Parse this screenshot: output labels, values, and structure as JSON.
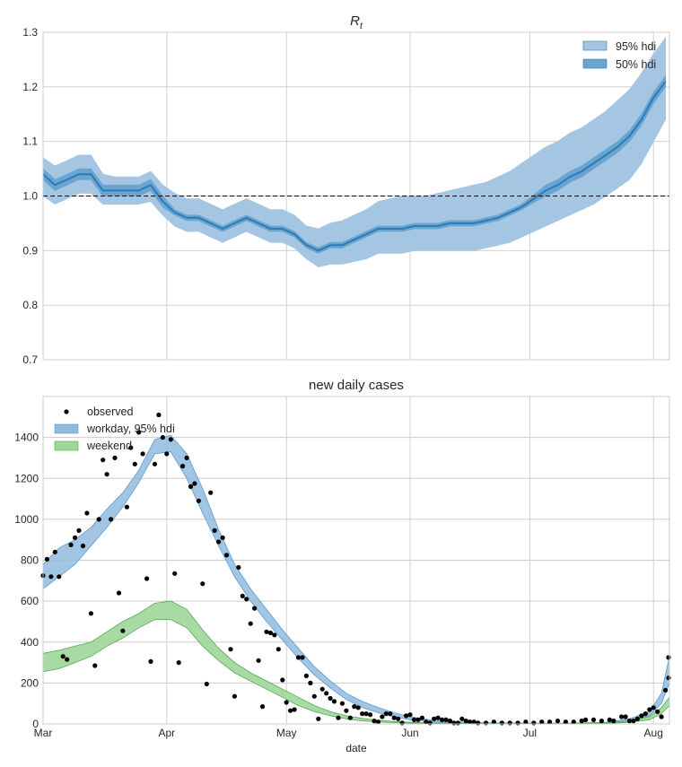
{
  "chart_data": [
    {
      "type": "area",
      "title": "R",
      "title_subscript": "t",
      "xlabel": "",
      "ylabel": "",
      "ylim": [
        0.7,
        1.3
      ],
      "yticks": [
        "0.7",
        "0.8",
        "0.9",
        "1.0",
        "1.1",
        "1.2",
        "1.3"
      ],
      "xlim": [
        "2020-03-01",
        "2020-08-05"
      ],
      "grid": true,
      "reference_line": {
        "y": 1.0,
        "style": "dashed",
        "color": "#000000"
      },
      "legend": {
        "position": "top-right",
        "entries": [
          "95% hdi",
          "50% hdi"
        ]
      },
      "colors": {
        "hdi95": "#a4c6e2",
        "hdi50": "#6aa4d1",
        "median": "#2c7bb6"
      },
      "dates": [
        "2020-03-01",
        "2020-03-04",
        "2020-03-07",
        "2020-03-10",
        "2020-03-13",
        "2020-03-16",
        "2020-03-19",
        "2020-03-22",
        "2020-03-25",
        "2020-03-28",
        "2020-03-31",
        "2020-04-03",
        "2020-04-06",
        "2020-04-09",
        "2020-04-12",
        "2020-04-15",
        "2020-04-18",
        "2020-04-21",
        "2020-04-24",
        "2020-04-27",
        "2020-04-30",
        "2020-05-03",
        "2020-05-06",
        "2020-05-09",
        "2020-05-12",
        "2020-05-15",
        "2020-05-18",
        "2020-05-21",
        "2020-05-24",
        "2020-05-27",
        "2020-05-30",
        "2020-06-02",
        "2020-06-05",
        "2020-06-08",
        "2020-06-11",
        "2020-06-14",
        "2020-06-17",
        "2020-06-20",
        "2020-06-23",
        "2020-06-26",
        "2020-06-29",
        "2020-07-02",
        "2020-07-05",
        "2020-07-08",
        "2020-07-11",
        "2020-07-14",
        "2020-07-17",
        "2020-07-20",
        "2020-07-23",
        "2020-07-26",
        "2020-07-29",
        "2020-08-01",
        "2020-08-04"
      ],
      "median": [
        1.04,
        1.02,
        1.03,
        1.04,
        1.04,
        1.01,
        1.01,
        1.01,
        1.01,
        1.02,
        0.99,
        0.97,
        0.96,
        0.96,
        0.95,
        0.94,
        0.95,
        0.96,
        0.95,
        0.94,
        0.94,
        0.93,
        0.91,
        0.9,
        0.91,
        0.91,
        0.92,
        0.93,
        0.94,
        0.94,
        0.94,
        0.945,
        0.945,
        0.945,
        0.95,
        0.95,
        0.95,
        0.955,
        0.96,
        0.97,
        0.98,
        0.995,
        1.01,
        1.02,
        1.035,
        1.045,
        1.06,
        1.075,
        1.09,
        1.11,
        1.14,
        1.18,
        1.21
      ],
      "hdi50_low": [
        1.03,
        1.01,
        1.02,
        1.03,
        1.03,
        1.0,
        1.0,
        1.0,
        1.0,
        1.01,
        0.98,
        0.965,
        0.955,
        0.955,
        0.945,
        0.935,
        0.945,
        0.955,
        0.945,
        0.935,
        0.935,
        0.925,
        0.905,
        0.895,
        0.905,
        0.905,
        0.915,
        0.925,
        0.935,
        0.935,
        0.935,
        0.94,
        0.94,
        0.94,
        0.945,
        0.945,
        0.945,
        0.95,
        0.955,
        0.965,
        0.975,
        0.988,
        1.0,
        1.01,
        1.025,
        1.035,
        1.05,
        1.065,
        1.08,
        1.1,
        1.13,
        1.17,
        1.2
      ],
      "hdi50_high": [
        1.05,
        1.03,
        1.04,
        1.05,
        1.05,
        1.02,
        1.02,
        1.02,
        1.02,
        1.03,
        1.0,
        0.975,
        0.965,
        0.965,
        0.955,
        0.945,
        0.955,
        0.965,
        0.955,
        0.945,
        0.945,
        0.935,
        0.915,
        0.905,
        0.915,
        0.915,
        0.925,
        0.935,
        0.945,
        0.945,
        0.945,
        0.95,
        0.95,
        0.95,
        0.955,
        0.955,
        0.955,
        0.96,
        0.965,
        0.975,
        0.985,
        1.002,
        1.02,
        1.03,
        1.045,
        1.055,
        1.07,
        1.085,
        1.1,
        1.12,
        1.15,
        1.19,
        1.22
      ],
      "hdi95_low": [
        1.0,
        0.985,
        0.995,
        1.005,
        1.005,
        0.985,
        0.985,
        0.985,
        0.985,
        0.99,
        0.965,
        0.945,
        0.935,
        0.935,
        0.925,
        0.915,
        0.925,
        0.935,
        0.925,
        0.915,
        0.915,
        0.905,
        0.885,
        0.87,
        0.875,
        0.875,
        0.88,
        0.885,
        0.895,
        0.895,
        0.895,
        0.9,
        0.9,
        0.9,
        0.9,
        0.9,
        0.9,
        0.905,
        0.91,
        0.915,
        0.925,
        0.935,
        0.945,
        0.955,
        0.965,
        0.975,
        0.985,
        1.0,
        1.015,
        1.03,
        1.06,
        1.1,
        1.14
      ],
      "hdi95_high": [
        1.07,
        1.055,
        1.065,
        1.075,
        1.075,
        1.04,
        1.035,
        1.035,
        1.035,
        1.045,
        1.02,
        1.005,
        0.995,
        0.995,
        0.985,
        0.975,
        0.985,
        0.995,
        0.985,
        0.975,
        0.975,
        0.965,
        0.945,
        0.94,
        0.95,
        0.955,
        0.965,
        0.975,
        0.99,
        0.995,
        1.0,
        1.0,
        1.0,
        1.005,
        1.01,
        1.015,
        1.02,
        1.025,
        1.035,
        1.045,
        1.06,
        1.075,
        1.09,
        1.1,
        1.115,
        1.125,
        1.14,
        1.155,
        1.175,
        1.195,
        1.225,
        1.26,
        1.29
      ]
    },
    {
      "type": "scatter",
      "title": "new daily cases",
      "xlabel": "date",
      "ylabel": "",
      "ylim": [
        0,
        1600
      ],
      "yticks": [
        "0",
        "200",
        "400",
        "600",
        "800",
        "1000",
        "1200",
        "1400"
      ],
      "xlim": [
        "2020-03-01",
        "2020-08-05"
      ],
      "xticks": [
        "Mar",
        "Apr",
        "May",
        "Jun",
        "Jul",
        "Aug"
      ],
      "xtick_dates": [
        "2020-03-01",
        "2020-04-01",
        "2020-05-01",
        "2020-06-01",
        "2020-07-01",
        "2020-08-01"
      ],
      "grid": true,
      "legend": {
        "position": "top-left",
        "entries": [
          "observed",
          "workday, 95% hdi",
          "weekend"
        ]
      },
      "colors": {
        "workday": "#91bbdd",
        "workday_edge": "#5b9bd0",
        "weekend": "#9fd69a",
        "weekend_edge": "#55a852",
        "observed": "#000000"
      },
      "band_dates": [
        "2020-03-01",
        "2020-03-05",
        "2020-03-09",
        "2020-03-13",
        "2020-03-17",
        "2020-03-21",
        "2020-03-25",
        "2020-03-29",
        "2020-04-02",
        "2020-04-06",
        "2020-04-10",
        "2020-04-14",
        "2020-04-18",
        "2020-04-22",
        "2020-04-26",
        "2020-04-30",
        "2020-05-04",
        "2020-05-08",
        "2020-05-12",
        "2020-05-16",
        "2020-05-20",
        "2020-05-24",
        "2020-05-28",
        "2020-06-01",
        "2020-06-06",
        "2020-06-12",
        "2020-06-20",
        "2020-06-30",
        "2020-07-10",
        "2020-07-20",
        "2020-07-26",
        "2020-07-31",
        "2020-08-03",
        "2020-08-05"
      ],
      "workday_low": [
        660,
        720,
        780,
        870,
        960,
        1060,
        1180,
        1320,
        1330,
        1200,
        1030,
        870,
        720,
        600,
        500,
        410,
        320,
        240,
        175,
        120,
        80,
        55,
        35,
        20,
        10,
        5,
        3,
        2,
        2,
        5,
        15,
        40,
        100,
        200
      ],
      "workday_high": [
        780,
        860,
        900,
        960,
        1050,
        1130,
        1240,
        1390,
        1410,
        1320,
        1150,
        950,
        780,
        660,
        560,
        460,
        370,
        280,
        210,
        150,
        110,
        80,
        55,
        35,
        20,
        10,
        6,
        4,
        4,
        8,
        25,
        60,
        150,
        330
      ],
      "weekend_low": [
        255,
        270,
        300,
        330,
        380,
        420,
        470,
        510,
        510,
        470,
        380,
        310,
        250,
        210,
        170,
        130,
        90,
        60,
        40,
        25,
        15,
        10,
        6,
        4,
        3,
        2,
        1,
        1,
        1,
        3,
        8,
        20,
        50,
        90
      ],
      "weekend_high": [
        345,
        360,
        380,
        400,
        450,
        500,
        540,
        590,
        600,
        560,
        460,
        370,
        300,
        250,
        210,
        170,
        130,
        90,
        60,
        40,
        27,
        18,
        12,
        8,
        5,
        3,
        2,
        2,
        2,
        5,
        14,
        35,
        80,
        130
      ],
      "observed": [
        {
          "x": "2020-03-01",
          "y": 725
        },
        {
          "x": "2020-03-02",
          "y": 805
        },
        {
          "x": "2020-03-03",
          "y": 720
        },
        {
          "x": "2020-03-04",
          "y": 840
        },
        {
          "x": "2020-03-05",
          "y": 720
        },
        {
          "x": "2020-03-06",
          "y": 330
        },
        {
          "x": "2020-03-07",
          "y": 315
        },
        {
          "x": "2020-03-08",
          "y": 875
        },
        {
          "x": "2020-03-09",
          "y": 910
        },
        {
          "x": "2020-03-10",
          "y": 945
        },
        {
          "x": "2020-03-11",
          "y": 870
        },
        {
          "x": "2020-03-12",
          "y": 1030
        },
        {
          "x": "2020-03-13",
          "y": 540
        },
        {
          "x": "2020-03-14",
          "y": 285
        },
        {
          "x": "2020-03-15",
          "y": 1000
        },
        {
          "x": "2020-03-16",
          "y": 1290
        },
        {
          "x": "2020-03-17",
          "y": 1220
        },
        {
          "x": "2020-03-18",
          "y": 1000
        },
        {
          "x": "2020-03-19",
          "y": 1300
        },
        {
          "x": "2020-03-20",
          "y": 640
        },
        {
          "x": "2020-03-21",
          "y": 455
        },
        {
          "x": "2020-03-22",
          "y": 1060
        },
        {
          "x": "2020-03-23",
          "y": 1350
        },
        {
          "x": "2020-03-24",
          "y": 1270
        },
        {
          "x": "2020-03-25",
          "y": 1425
        },
        {
          "x": "2020-03-26",
          "y": 1320
        },
        {
          "x": "2020-03-27",
          "y": 710
        },
        {
          "x": "2020-03-28",
          "y": 305
        },
        {
          "x": "2020-03-29",
          "y": 1270
        },
        {
          "x": "2020-03-30",
          "y": 1510
        },
        {
          "x": "2020-03-31",
          "y": 1400
        },
        {
          "x": "2020-04-01",
          "y": 1320
        },
        {
          "x": "2020-04-02",
          "y": 1390
        },
        {
          "x": "2020-04-03",
          "y": 735
        },
        {
          "x": "2020-04-04",
          "y": 300
        },
        {
          "x": "2020-04-05",
          "y": 1260
        },
        {
          "x": "2020-04-06",
          "y": 1300
        },
        {
          "x": "2020-04-07",
          "y": 1160
        },
        {
          "x": "2020-04-08",
          "y": 1175
        },
        {
          "x": "2020-04-09",
          "y": 1090
        },
        {
          "x": "2020-04-10",
          "y": 685
        },
        {
          "x": "2020-04-11",
          "y": 195
        },
        {
          "x": "2020-04-12",
          "y": 1130
        },
        {
          "x": "2020-04-13",
          "y": 945
        },
        {
          "x": "2020-04-14",
          "y": 890
        },
        {
          "x": "2020-04-15",
          "y": 910
        },
        {
          "x": "2020-04-16",
          "y": 825
        },
        {
          "x": "2020-04-17",
          "y": 365
        },
        {
          "x": "2020-04-18",
          "y": 135
        },
        {
          "x": "2020-04-19",
          "y": 765
        },
        {
          "x": "2020-04-20",
          "y": 625
        },
        {
          "x": "2020-04-21",
          "y": 610
        },
        {
          "x": "2020-04-22",
          "y": 490
        },
        {
          "x": "2020-04-23",
          "y": 565
        },
        {
          "x": "2020-04-24",
          "y": 310
        },
        {
          "x": "2020-04-25",
          "y": 85
        },
        {
          "x": "2020-04-26",
          "y": 450
        },
        {
          "x": "2020-04-27",
          "y": 445
        },
        {
          "x": "2020-04-28",
          "y": 435
        },
        {
          "x": "2020-04-29",
          "y": 365
        },
        {
          "x": "2020-04-30",
          "y": 215
        },
        {
          "x": "2020-05-01",
          "y": 105
        },
        {
          "x": "2020-05-02",
          "y": 65
        },
        {
          "x": "2020-05-03",
          "y": 70
        },
        {
          "x": "2020-05-04",
          "y": 325
        },
        {
          "x": "2020-05-05",
          "y": 325
        },
        {
          "x": "2020-05-06",
          "y": 235
        },
        {
          "x": "2020-05-07",
          "y": 200
        },
        {
          "x": "2020-05-08",
          "y": 135
        },
        {
          "x": "2020-05-09",
          "y": 25
        },
        {
          "x": "2020-05-10",
          "y": 170
        },
        {
          "x": "2020-05-11",
          "y": 150
        },
        {
          "x": "2020-05-12",
          "y": 125
        },
        {
          "x": "2020-05-13",
          "y": 110
        },
        {
          "x": "2020-05-14",
          "y": 30
        },
        {
          "x": "2020-05-15",
          "y": 100
        },
        {
          "x": "2020-05-16",
          "y": 65
        },
        {
          "x": "2020-05-17",
          "y": 30
        },
        {
          "x": "2020-05-18",
          "y": 85
        },
        {
          "x": "2020-05-19",
          "y": 80
        },
        {
          "x": "2020-05-20",
          "y": 50
        },
        {
          "x": "2020-05-21",
          "y": 50
        },
        {
          "x": "2020-05-22",
          "y": 45
        },
        {
          "x": "2020-05-23",
          "y": 15
        },
        {
          "x": "2020-05-24",
          "y": 10
        },
        {
          "x": "2020-05-25",
          "y": 35
        },
        {
          "x": "2020-05-26",
          "y": 50
        },
        {
          "x": "2020-05-27",
          "y": 50
        },
        {
          "x": "2020-05-28",
          "y": 30
        },
        {
          "x": "2020-05-29",
          "y": 25
        },
        {
          "x": "2020-05-30",
          "y": 5
        },
        {
          "x": "2020-05-31",
          "y": 40
        },
        {
          "x": "2020-06-01",
          "y": 45
        },
        {
          "x": "2020-06-02",
          "y": 20
        },
        {
          "x": "2020-06-03",
          "y": 20
        },
        {
          "x": "2020-06-04",
          "y": 30
        },
        {
          "x": "2020-06-05",
          "y": 10
        },
        {
          "x": "2020-06-06",
          "y": 5
        },
        {
          "x": "2020-06-07",
          "y": 25
        },
        {
          "x": "2020-06-08",
          "y": 30
        },
        {
          "x": "2020-06-09",
          "y": 20
        },
        {
          "x": "2020-06-10",
          "y": 20
        },
        {
          "x": "2020-06-11",
          "y": 15
        },
        {
          "x": "2020-06-12",
          "y": 5
        },
        {
          "x": "2020-06-13",
          "y": 5
        },
        {
          "x": "2020-06-14",
          "y": 25
        },
        {
          "x": "2020-06-15",
          "y": 15
        },
        {
          "x": "2020-06-16",
          "y": 10
        },
        {
          "x": "2020-06-17",
          "y": 10
        },
        {
          "x": "2020-06-18",
          "y": 5
        },
        {
          "x": "2020-06-20",
          "y": 5
        },
        {
          "x": "2020-06-22",
          "y": 10
        },
        {
          "x": "2020-06-24",
          "y": 5
        },
        {
          "x": "2020-06-26",
          "y": 5
        },
        {
          "x": "2020-06-28",
          "y": 5
        },
        {
          "x": "2020-06-30",
          "y": 10
        },
        {
          "x": "2020-07-02",
          "y": 5
        },
        {
          "x": "2020-07-04",
          "y": 10
        },
        {
          "x": "2020-07-06",
          "y": 10
        },
        {
          "x": "2020-07-08",
          "y": 15
        },
        {
          "x": "2020-07-10",
          "y": 10
        },
        {
          "x": "2020-07-12",
          "y": 10
        },
        {
          "x": "2020-07-14",
          "y": 15
        },
        {
          "x": "2020-07-15",
          "y": 20
        },
        {
          "x": "2020-07-17",
          "y": 20
        },
        {
          "x": "2020-07-19",
          "y": 15
        },
        {
          "x": "2020-07-21",
          "y": 20
        },
        {
          "x": "2020-07-22",
          "y": 15
        },
        {
          "x": "2020-07-24",
          "y": 35
        },
        {
          "x": "2020-07-25",
          "y": 35
        },
        {
          "x": "2020-07-26",
          "y": 15
        },
        {
          "x": "2020-07-27",
          "y": 15
        },
        {
          "x": "2020-07-28",
          "y": 25
        },
        {
          "x": "2020-07-29",
          "y": 40
        },
        {
          "x": "2020-07-30",
          "y": 50
        },
        {
          "x": "2020-07-31",
          "y": 70
        },
        {
          "x": "2020-08-01",
          "y": 80
        },
        {
          "x": "2020-08-02",
          "y": 60
        },
        {
          "x": "2020-08-03",
          "y": 35
        },
        {
          "x": "2020-08-04",
          "y": 165
        },
        {
          "x": "2020-08-05",
          "y": 225
        },
        {
          "x": "2020-08-06",
          "y": 325
        }
      ]
    }
  ]
}
